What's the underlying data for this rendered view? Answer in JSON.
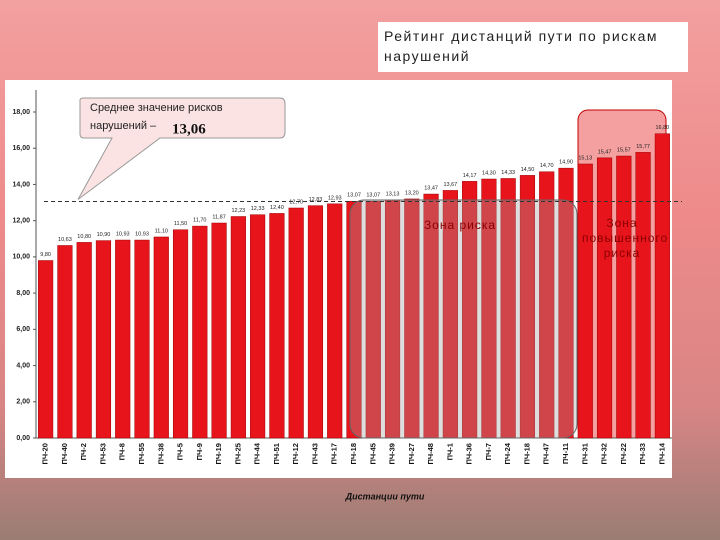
{
  "chart_data": {
    "type": "bar",
    "title": "Рейтинг дистанций пути по рискам нарушений",
    "x_label": "Дистанции пути",
    "categories": [
      "ПЧ-20",
      "ПЧ-40",
      "ПЧ-2",
      "ПЧ-53",
      "ПЧ-8",
      "ПЧ-55",
      "ПЧ-38",
      "ПЧ-5",
      "ПЧ-9",
      "ПЧ-19",
      "ПЧ-25",
      "ПЧ-44",
      "ПЧ-51",
      "ПЧ-12",
      "ПЧ-43",
      "ПЧ-17",
      "ПЧ-18",
      "ПЧ-45",
      "ПЧ-39",
      "ПЧ-27",
      "ПЧ-48",
      "ПЧ-1",
      "ПЧ-36",
      "ПЧ-7",
      "ПЧ-24",
      "ПЧ-18",
      "ПЧ-47",
      "ПЧ-11",
      "ПЧ-31",
      "ПЧ-32",
      "ПЧ-22",
      "ПЧ-33",
      "ПЧ-14"
    ],
    "values": [
      9.8,
      10.63,
      10.8,
      10.9,
      10.93,
      10.93,
      11.1,
      11.5,
      11.7,
      11.87,
      12.23,
      12.33,
      12.4,
      12.7,
      12.83,
      12.93,
      13.07,
      13.07,
      13.13,
      13.2,
      13.47,
      13.67,
      14.17,
      14.3,
      14.33,
      14.5,
      14.7,
      14.9,
      15.13,
      15.47,
      15.57,
      15.77,
      16.8
    ],
    "value_labels": [
      "9,80",
      "10,63",
      "10,80",
      "10,90",
      "10,93",
      "10,93",
      "11,10",
      "11,50",
      "11,70",
      "11,87",
      "12,23",
      "12,33",
      "12,40",
      "12,70",
      "12,83",
      "12,93",
      "13,07",
      "13,07",
      "13,13",
      "13,20",
      "13,47",
      "13,67",
      "14,17",
      "14,30",
      "14,33",
      "14,50",
      "14,70",
      "14,90",
      "15,13",
      "15,47",
      "15,57",
      "15,77",
      "16,80"
    ],
    "color": "#e8141c",
    "ylim": [
      0,
      18
    ],
    "yticks": [
      {
        "value": 0,
        "label": "0,00"
      },
      {
        "value": 2,
        "label": "2,00"
      },
      {
        "value": 4,
        "label": "4,00"
      },
      {
        "value": 6,
        "label": "6,00"
      },
      {
        "value": 8,
        "label": "8,00"
      },
      {
        "value": 10,
        "label": "10,00"
      },
      {
        "value": 12,
        "label": "12,00"
      },
      {
        "value": 14,
        "label": "14,00"
      },
      {
        "value": 16,
        "label": "16,00"
      },
      {
        "value": 18,
        "label": "18,00"
      }
    ],
    "mean": {
      "text": "Среднее значение рисков нарушений –",
      "value": 13.06,
      "label": "13,06"
    },
    "annotations": [
      "Зона риска",
      "Зона повышенного риска"
    ]
  }
}
